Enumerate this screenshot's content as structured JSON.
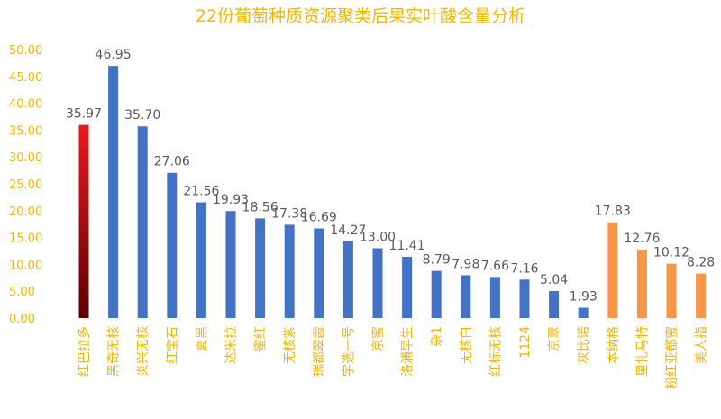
{
  "chart_data": {
    "type": "bar",
    "title": "22份葡萄种质资源聚类后果实叶酸含量分析",
    "xlabel": "",
    "ylabel": "",
    "ylim": [
      0,
      50
    ],
    "yticks": [
      "0.00",
      "5.00",
      "10.00",
      "15.00",
      "20.00",
      "25.00",
      "30.00",
      "35.00",
      "40.00",
      "45.00",
      "50.00"
    ],
    "grid": false,
    "legend": "none",
    "categories": [
      "红巴拉多",
      "黑奇无核",
      "炎兴无核",
      "红宝石",
      "夏黑",
      "达米拉",
      "蜜红",
      "无核紫",
      "瑞都翠霞",
      "宇选一号",
      "京蜜",
      "洛浦早生",
      "杂1",
      "无核白",
      "红标无核",
      "1124",
      "京翠",
      "灰比诺",
      "本纳格",
      "里扎马特",
      "粉红亚都蜜",
      "美人指"
    ],
    "values": [
      35.97,
      46.95,
      35.7,
      27.06,
      21.56,
      19.93,
      18.56,
      17.38,
      16.69,
      14.27,
      13.0,
      11.41,
      8.79,
      7.98,
      7.66,
      7.16,
      5.04,
      1.93,
      17.83,
      12.76,
      10.12,
      8.28
    ],
    "value_labels": [
      "35.97",
      "46.95",
      "35.70",
      "27.06",
      "21.56",
      "19.93",
      "18.56",
      "17.38",
      "16.69",
      "14.27",
      "13.00",
      "11.41",
      "8.79",
      "7.98",
      "7.66",
      "7.16",
      "5.04",
      "1.93",
      "17.83",
      "12.76",
      "10.12",
      "8.28"
    ],
    "groups": [
      "red",
      "blue",
      "blue",
      "blue",
      "blue",
      "blue",
      "blue",
      "blue",
      "blue",
      "blue",
      "blue",
      "blue",
      "blue",
      "blue",
      "blue",
      "blue",
      "blue",
      "blue",
      "orange",
      "orange",
      "orange",
      "orange"
    ],
    "colors": {
      "red_top": "#e8191f",
      "red_bottom": "#5c0000",
      "blue": "#4472c4",
      "orange": "#f79646",
      "text": "#f2b600",
      "label": "#595959"
    }
  }
}
